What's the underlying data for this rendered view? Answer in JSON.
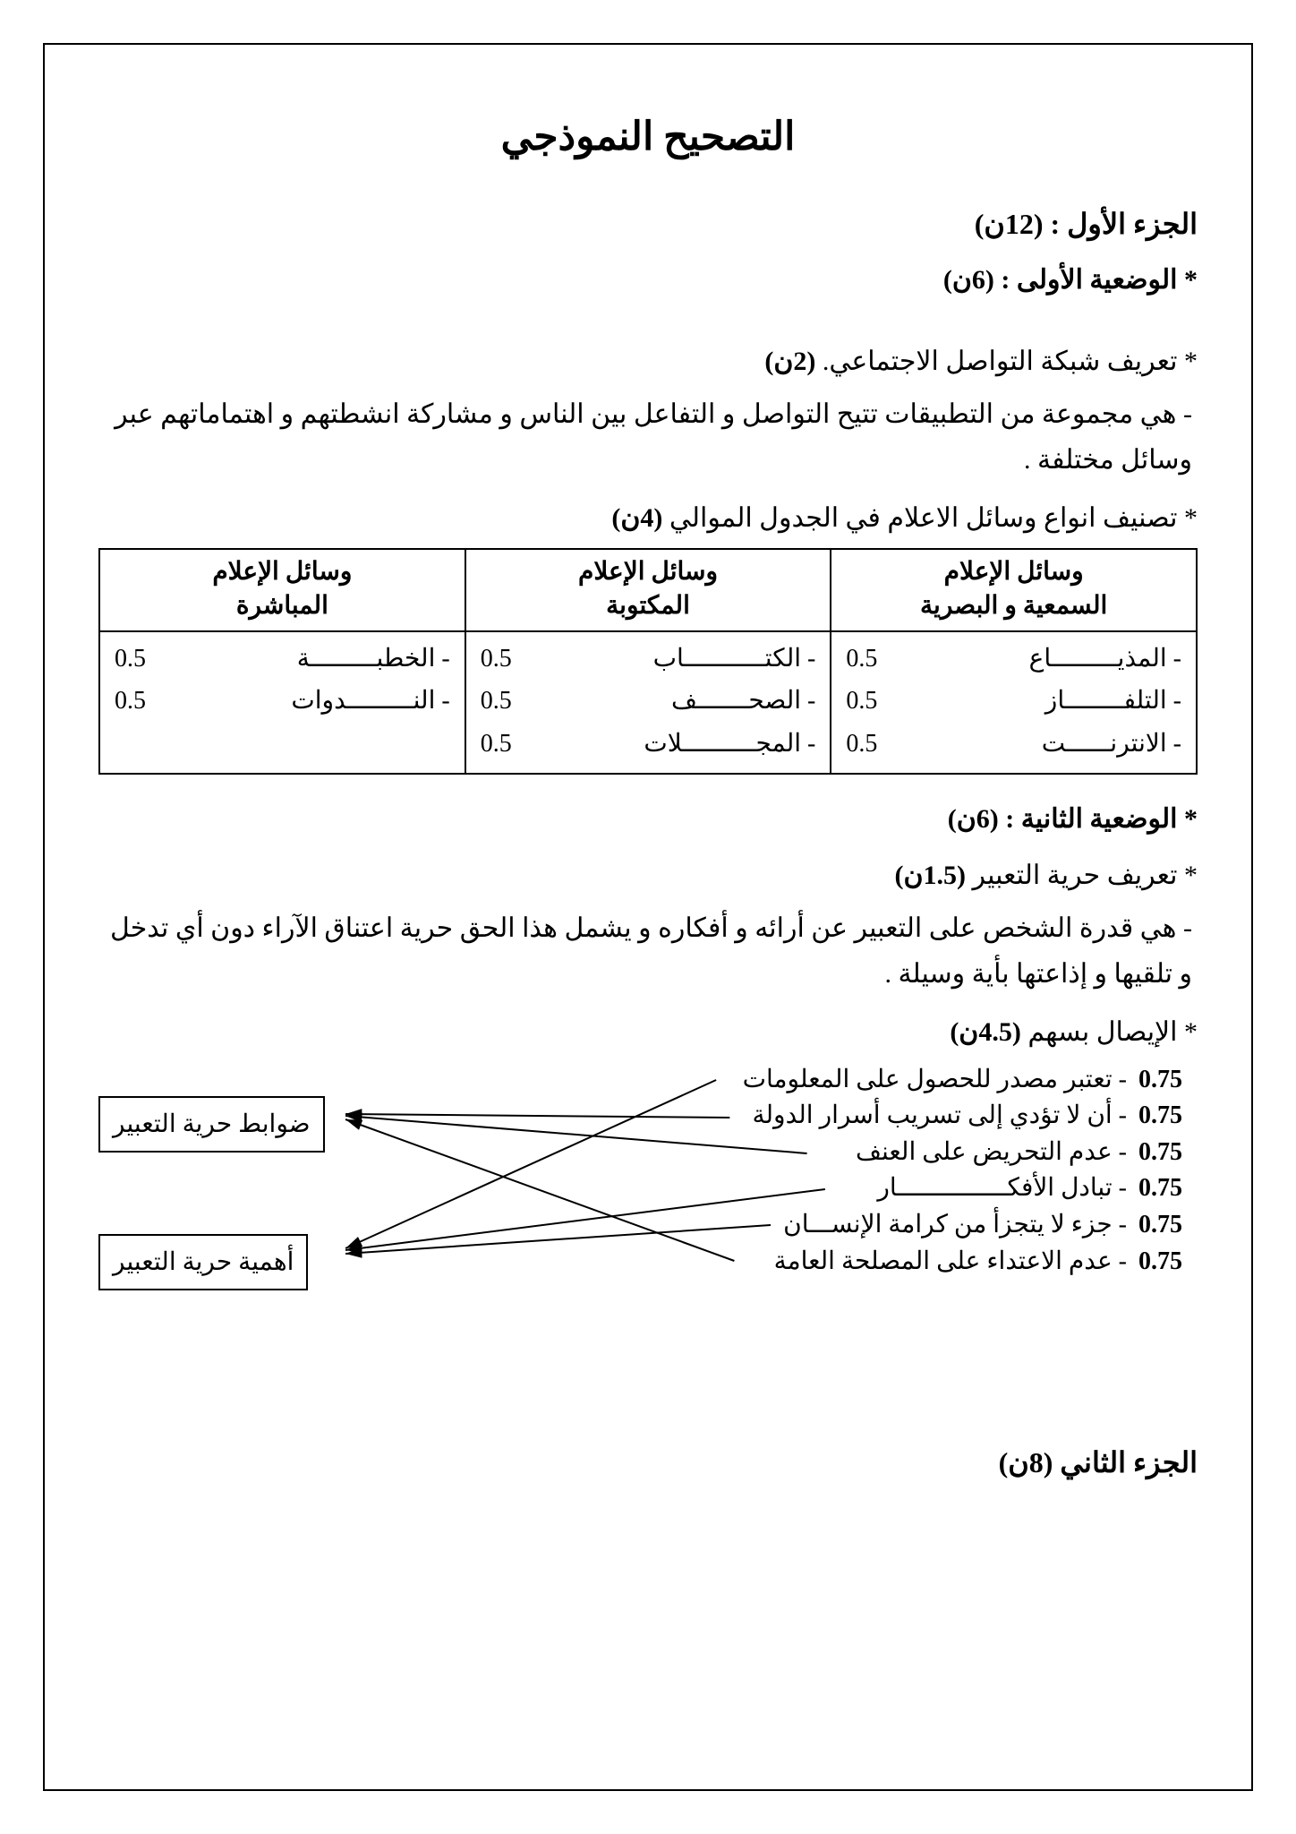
{
  "title": "التصحيح النموذجي",
  "part1_heading": "الجزء الأول : (12ن)",
  "situation1_heading": "* الوضعية الأولى : (6ن)",
  "def1_head": "* تعريف شبكة التواصل الاجتماعي. ",
  "def1_score": "(2ن)",
  "def1_body": "- هي مجموعة من التطبيقات تتيح التواصل و التفاعل بين الناس و مشاركة انشطتهم    و اهتماماتهم عبر وسائل مختلفة .",
  "table_head": "* تصنيف انواع وسائل الاعلام في الجدول الموالي ",
  "table_score": "(4ن)",
  "table": {
    "headers": [
      "وسائل الإعلام\nالسمعية و البصرية",
      "وسائل الإعلام\nالمكتوبة",
      "وسائل الإعلام\nالمباشرة"
    ],
    "col1": [
      {
        "t": "- المذيـــــــــاع",
        "s": "0.5"
      },
      {
        "t": "- التلفــــــــاز",
        "s": "0.5"
      },
      {
        "t": "- الانترنــــــت",
        "s": "0.5"
      }
    ],
    "col2": [
      {
        "t": "- الكتـــــــــــاب",
        "s": "0.5"
      },
      {
        "t": "- الصحـــــــف",
        "s": "0.5"
      },
      {
        "t": "- المجــــــــــلات",
        "s": "0.5"
      }
    ],
    "col3": [
      {
        "t": "- الخطبـــــــــة",
        "s": "0.5"
      },
      {
        "t": "- النـــــــــدوات",
        "s": "0.5"
      }
    ]
  },
  "situation2_heading": "* الوضعية الثانية : (6ن)",
  "def2_head": "* تعريف حرية التعبير ",
  "def2_score": "(1.5ن)",
  "def2_body": "- هي قدرة الشخص  على التعبير عن أرائه و أفكاره و يشمل هذا الحق حرية اعتناق الآراء دون أي تدخل و تلقيها و إذاعتها بأية وسيلة .",
  "arrows_head": "* الإيصال بسهم ",
  "arrows_score": "(4.5ن)",
  "arrow_items": [
    {
      "s": "0.75",
      "t": "- تعتبر مصدر للحصول على المعلومات"
    },
    {
      "s": "0.75",
      "t": "- أن لا تؤدي إلى تسريب أسرار الدولة"
    },
    {
      "s": "0.75",
      "t": "- عدم التحريض على العنف"
    },
    {
      "s": "0.75",
      "t": "- تبادل الأفكـــــــــــــــار"
    },
    {
      "s": "0.75",
      "t": "- جزء لا يتجزأ من كرامة الإنســـان"
    },
    {
      "s": "0.75",
      "t": "- عدم الاعتداء على المصلحة العامة"
    }
  ],
  "box_top": "ضوابط حرية التعبير",
  "box_bottom": "أهمية حرية التعبير",
  "part2_heading": "الجزء الثاني (8ن)",
  "colors": {
    "text": "#000000",
    "border": "#000000",
    "bg": "#ffffff"
  },
  "fonts": {
    "title_pt": 44,
    "heading_pt": 32,
    "body_pt": 30,
    "table_pt": 28
  }
}
